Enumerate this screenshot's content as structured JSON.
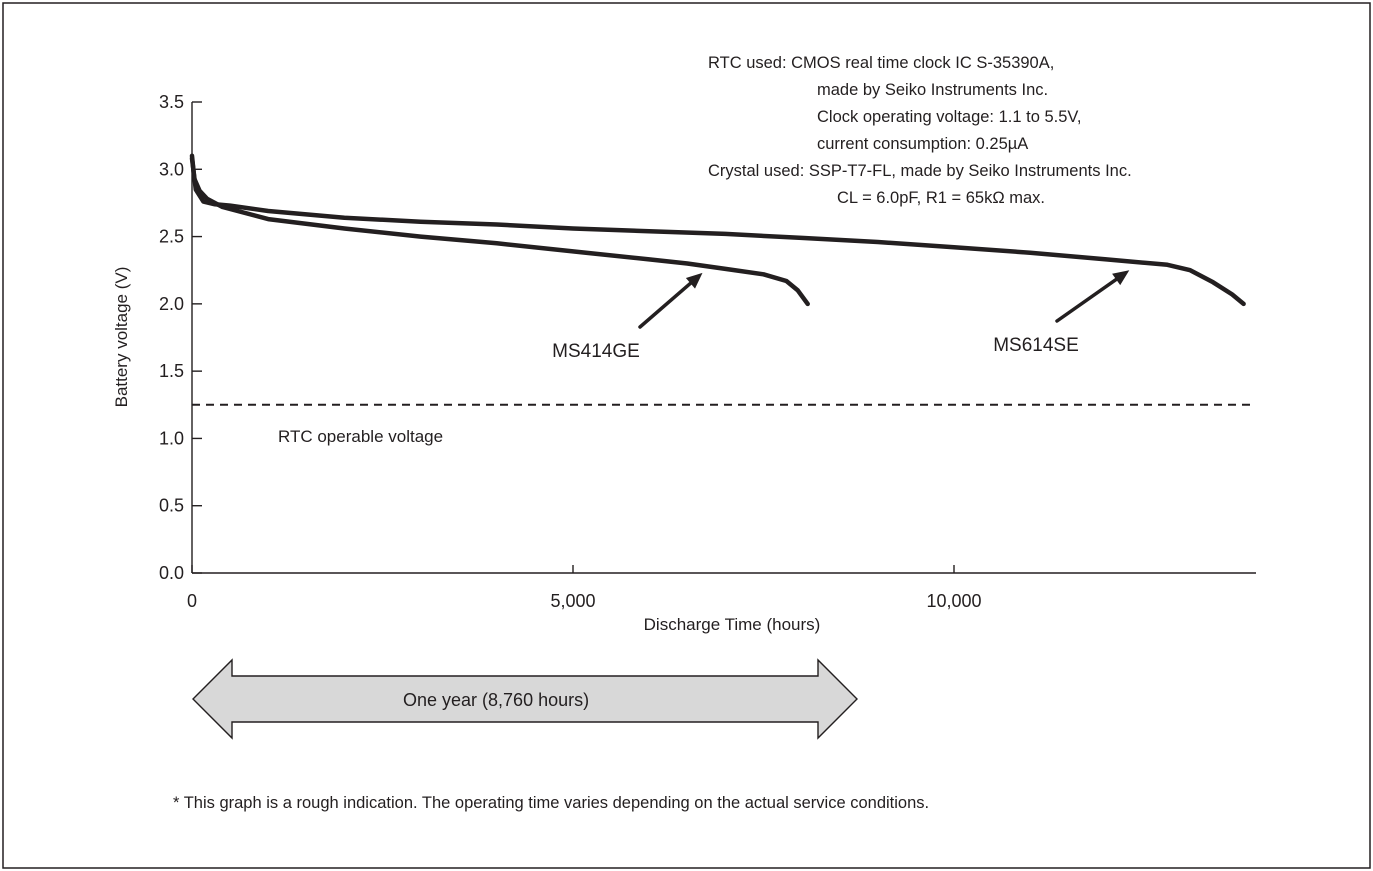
{
  "chart_data": {
    "type": "line",
    "xlabel": "Discharge Time (hours)",
    "ylabel": "Battery voltage (V)",
    "xlim": [
      0,
      14000
    ],
    "ylim": [
      0.0,
      3.5
    ],
    "x_ticks": [
      {
        "value": 0,
        "label": "0"
      },
      {
        "value": 5000,
        "label": "5,000"
      },
      {
        "value": 10000,
        "label": "10,000"
      }
    ],
    "y_ticks": [
      {
        "value": 0.0,
        "label": "0.0"
      },
      {
        "value": 0.5,
        "label": "0.5"
      },
      {
        "value": 1.0,
        "label": "1.0"
      },
      {
        "value": 1.5,
        "label": "1.5"
      },
      {
        "value": 2.0,
        "label": "2.0"
      },
      {
        "value": 2.5,
        "label": "2.5"
      },
      {
        "value": 3.0,
        "label": "3.0"
      },
      {
        "value": 3.5,
        "label": "3.5"
      }
    ],
    "grid": false,
    "series": [
      {
        "name": "MS414GE",
        "color": "#231f20",
        "points": [
          [
            0,
            3.1
          ],
          [
            30,
            2.93
          ],
          [
            100,
            2.84
          ],
          [
            200,
            2.78
          ],
          [
            400,
            2.72
          ],
          [
            1000,
            2.63
          ],
          [
            2000,
            2.56
          ],
          [
            3000,
            2.5
          ],
          [
            4000,
            2.45
          ],
          [
            5000,
            2.39
          ],
          [
            6000,
            2.33
          ],
          [
            6500,
            2.3
          ],
          [
            7000,
            2.26
          ],
          [
            7500,
            2.22
          ],
          [
            7800,
            2.17
          ],
          [
            7950,
            2.1
          ],
          [
            8080,
            2.0
          ]
        ]
      },
      {
        "name": "MS614SE",
        "color": "#231f20",
        "points": [
          [
            0,
            3.08
          ],
          [
            50,
            2.85
          ],
          [
            150,
            2.76
          ],
          [
            300,
            2.74
          ],
          [
            500,
            2.73
          ],
          [
            1000,
            2.69
          ],
          [
            2000,
            2.64
          ],
          [
            3000,
            2.61
          ],
          [
            4000,
            2.59
          ],
          [
            5000,
            2.56
          ],
          [
            6000,
            2.54
          ],
          [
            7000,
            2.52
          ],
          [
            8000,
            2.49
          ],
          [
            9000,
            2.46
          ],
          [
            10000,
            2.42
          ],
          [
            11000,
            2.38
          ],
          [
            12000,
            2.33
          ],
          [
            12800,
            2.29
          ],
          [
            13100,
            2.25
          ],
          [
            13400,
            2.16
          ],
          [
            13650,
            2.07
          ],
          [
            13800,
            2.0
          ]
        ]
      }
    ],
    "reference_line": {
      "y": 1.25,
      "style": "dashed",
      "label": "RTC operable voltage"
    },
    "series_callouts": [
      {
        "label": "MS414GE",
        "target": [
          6700,
          2.26
        ]
      },
      {
        "label": "MS614SE",
        "target": [
          12300,
          2.28
        ]
      }
    ],
    "annotation_lines": [
      "RTC used: CMOS real time clock IC S-35390A,",
      "made by Seiko Instruments Inc.",
      "Clock operating voltage: 1.1 to 5.5V,",
      "current consumption: 0.25µA",
      "Crystal used: SSP-T7-FL, made by Seiko Instruments Inc.",
      "CL = 6.0pF, R1 = 65kΩ max."
    ],
    "span_arrow": {
      "label": "One year (8,760 hours)",
      "from": 0,
      "to": 8760
    },
    "footnote": "* This graph is a rough indication. The operating time varies depending on the actual service conditions."
  }
}
